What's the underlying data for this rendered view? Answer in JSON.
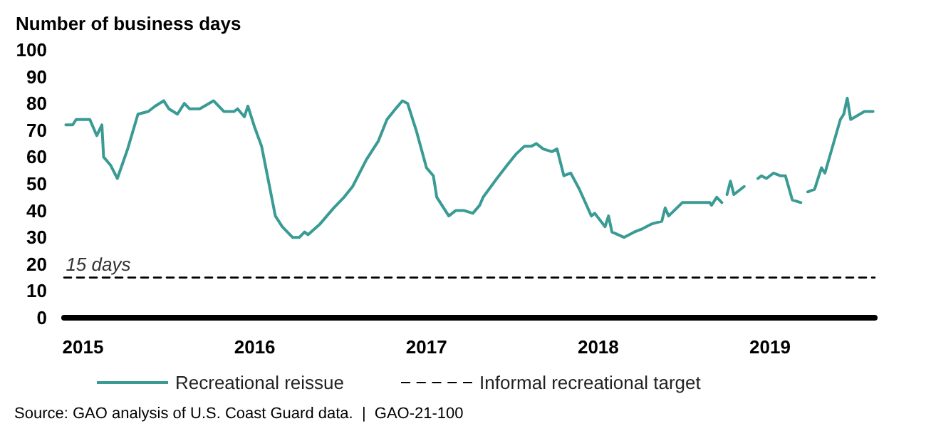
{
  "chart_data": {
    "type": "line",
    "ylabel": "Number of business days",
    "xlim": [
      2014.89,
      2019.61
    ],
    "xticks": [
      2015,
      2016,
      2017,
      2018,
      2019
    ],
    "ylim": [
      0,
      100
    ],
    "yticks": [
      0,
      10,
      20,
      30,
      40,
      50,
      60,
      70,
      80,
      90,
      100
    ],
    "grid": false,
    "legend": "bottom",
    "marker": "none",
    "series": [
      {
        "name": "Recreational reissue",
        "color": "#3a9b94",
        "line_style": "solid",
        "x": [
          2014.9,
          2014.94,
          2014.96,
          2015.04,
          2015.08,
          2015.11,
          2015.12,
          2015.16,
          2015.2,
          2015.26,
          2015.32,
          2015.38,
          2015.42,
          2015.47,
          2015.5,
          2015.55,
          2015.59,
          2015.62,
          2015.68,
          2015.76,
          2015.82,
          2015.88,
          2015.9,
          2015.94,
          2015.96,
          2016.0,
          2016.04,
          2016.08,
          2016.12,
          2016.16,
          2016.22,
          2016.26,
          2016.29,
          2016.31,
          2016.38,
          2016.46,
          2016.52,
          2016.57,
          2016.65,
          2016.72,
          2016.77,
          2016.82,
          2016.86,
          2016.89,
          2016.94,
          2017.0,
          2017.04,
          2017.06,
          2017.13,
          2017.17,
          2017.22,
          2017.27,
          2017.31,
          2017.33,
          2017.41,
          2017.47,
          2017.52,
          2017.57,
          2017.61,
          2017.64,
          2017.68,
          2017.73,
          2017.76,
          2017.8,
          2017.84,
          2017.89,
          2017.96,
          2017.98,
          2018.04,
          2018.06,
          2018.08,
          2018.15,
          2018.21,
          2018.25,
          2018.31,
          2018.37,
          2018.39,
          2018.41,
          2018.49,
          2018.65,
          2018.66,
          2018.69,
          2018.72,
          2018.73,
          2018.75,
          2018.77,
          2018.79,
          2018.85,
          2018.87,
          2018.93,
          2018.95,
          2018.98,
          2019.02,
          2019.06,
          2019.09,
          2019.13,
          2019.18,
          2019.2,
          2019.22,
          2019.26,
          2019.3,
          2019.32,
          2019.41,
          2019.43,
          2019.45,
          2019.47,
          2019.55,
          2019.6
        ],
        "values": [
          72,
          72,
          74,
          74,
          68,
          72,
          60,
          57,
          52,
          63,
          76,
          77,
          79,
          81,
          78,
          76,
          80,
          78,
          78,
          81,
          77,
          77,
          78,
          75,
          79,
          71,
          64,
          51,
          38,
          34,
          30,
          30,
          32,
          31,
          35,
          41,
          45,
          49,
          59,
          66,
          74,
          78,
          81,
          80,
          70,
          56,
          53,
          45,
          38,
          40,
          40,
          39,
          42,
          45,
          52,
          57,
          61,
          64,
          64,
          65,
          63,
          62,
          63,
          53,
          54,
          48,
          38,
          39,
          34,
          38,
          32,
          30,
          32,
          33,
          35,
          36,
          41,
          38,
          43,
          43,
          42,
          45,
          43,
          null,
          46,
          51,
          46,
          49,
          null,
          52,
          53,
          52,
          54,
          53,
          53,
          44,
          43,
          null,
          47,
          48,
          56,
          54,
          74,
          76,
          82,
          74,
          77,
          77
        ]
      },
      {
        "name": "Informal recreational target",
        "color": "#000000",
        "line_style": "dashed",
        "x": [
          2014.89,
          2019.61
        ],
        "values": [
          15,
          15
        ]
      }
    ],
    "annotations": [
      {
        "text": "15 days",
        "x": 2014.9,
        "y": 15
      },
      "Source: GAO analysis of U.S. Coast Guard data.  |  GAO-21-100"
    ]
  }
}
